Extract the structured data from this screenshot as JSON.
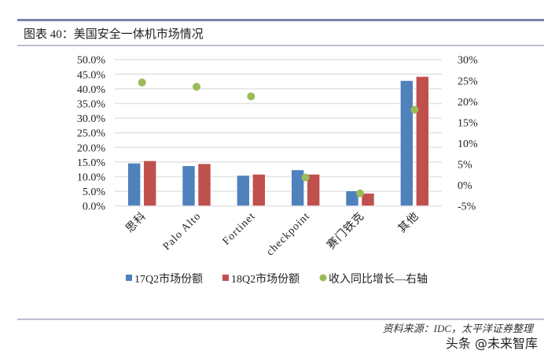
{
  "header": {
    "title": "图表 40：美国安全一体机市场情况"
  },
  "footer": {
    "source": "资料来源：IDC，太平洋证券整理",
    "watermark": "头条 @未来智库"
  },
  "chart_data": {
    "type": "bar",
    "categories": [
      "思科",
      "Palo Alto",
      "Fortinet",
      "checkpoint",
      "赛门铁克",
      "其他"
    ],
    "series": [
      {
        "name": "17Q2市场份额",
        "type": "bar",
        "axis": "left",
        "color": "#4f81bd",
        "values": [
          14.6,
          13.7,
          10.4,
          12.3,
          5.1,
          42.8
        ]
      },
      {
        "name": "18Q2市场份额",
        "type": "bar",
        "axis": "left",
        "color": "#c0504d",
        "values": [
          15.4,
          14.4,
          10.8,
          10.8,
          4.3,
          44.2
        ]
      },
      {
        "name": "收入同比增长—右轴",
        "type": "scatter",
        "axis": "right",
        "color": "#9bbb59",
        "values": [
          24.5,
          23.5,
          21.2,
          1.8,
          -2.0,
          18.0
        ]
      }
    ],
    "left_axis": {
      "ylim": [
        0,
        50
      ],
      "ticks": [
        "0.0%",
        "5.0%",
        "10.0%",
        "15.0%",
        "20.0%",
        "25.0%",
        "30.0%",
        "35.0%",
        "40.0%",
        "45.0%",
        "50.0%"
      ]
    },
    "right_axis": {
      "ylim": [
        -5,
        30
      ],
      "ticks": [
        "-5%",
        "0%",
        "5%",
        "10%",
        "15%",
        "20%",
        "25%",
        "30%"
      ]
    },
    "grid": true,
    "legend": "bottom"
  }
}
